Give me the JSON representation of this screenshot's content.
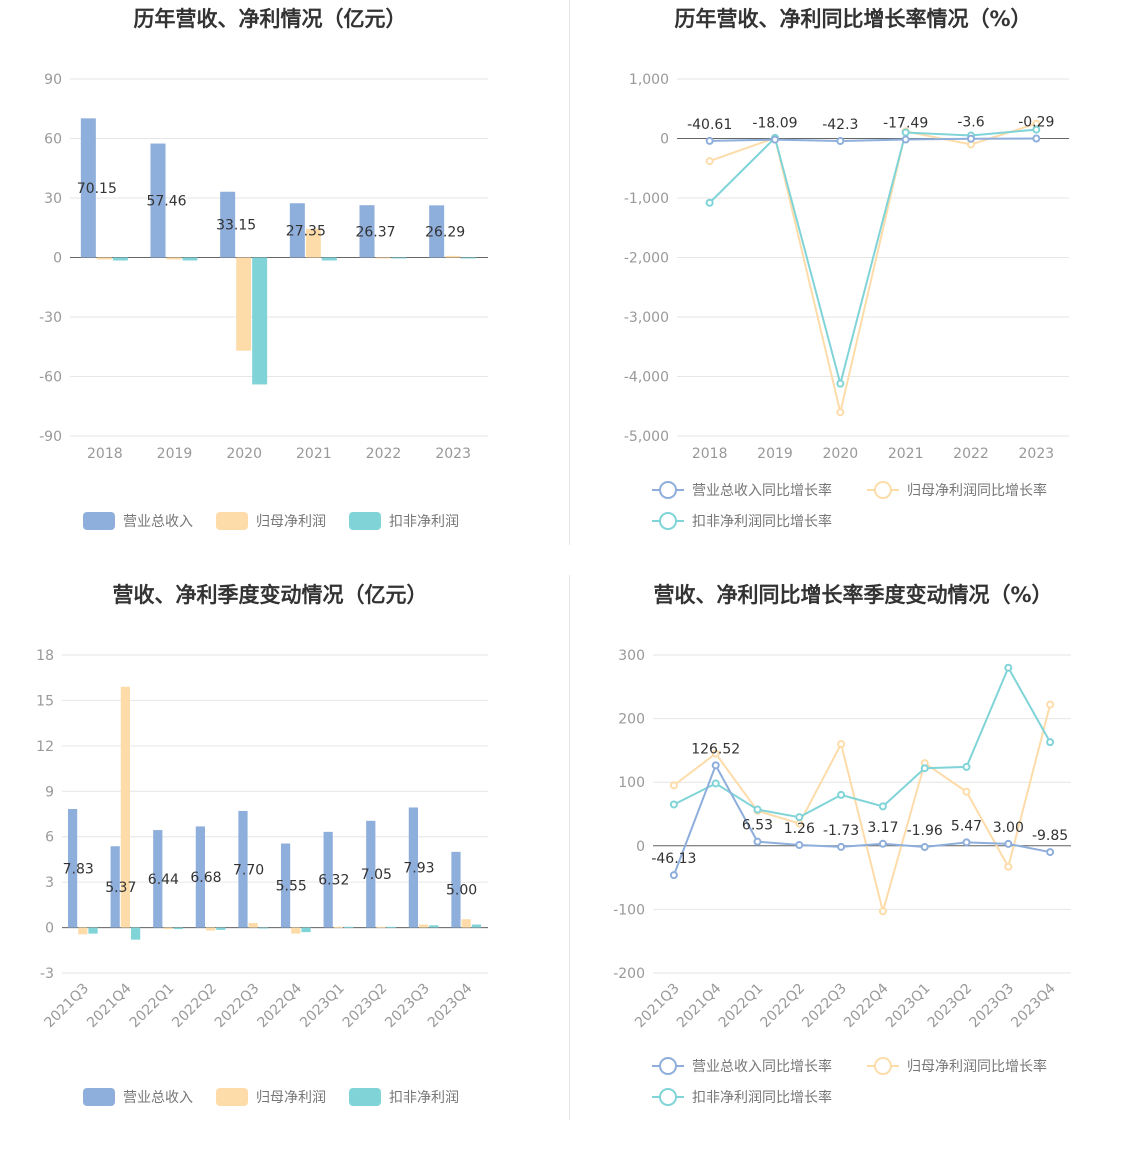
{
  "colors": {
    "revenue": "#8eaedb",
    "net_profit": "#fddcaa",
    "deducted_profit": "#80d4d7",
    "grid": "#e6e6e6",
    "axis": "#666666"
  },
  "chart_data": [
    {
      "id": "annual_values",
      "type": "bar",
      "title": "历年营收、净利情况（亿元）",
      "categories": [
        "2018",
        "2019",
        "2020",
        "2021",
        "2022",
        "2023"
      ],
      "ylim": [
        -90,
        90
      ],
      "yticks": [
        "90",
        "60",
        "30",
        "0",
        "-30",
        "-60",
        "-90"
      ],
      "series": [
        {
          "name": "营业总收入",
          "values": [
            70.15,
            57.46,
            33.15,
            27.35,
            26.37,
            26.29
          ]
        },
        {
          "name": "归母净利润",
          "values": [
            -1.0,
            -1.0,
            -47.0,
            14.5,
            -0.5,
            0.8
          ]
        },
        {
          "name": "扣非净利润",
          "values": [
            -1.5,
            -1.5,
            -64.0,
            -1.5,
            -0.5,
            -0.5
          ]
        }
      ],
      "data_labels": [
        "70.15",
        "57.46",
        "33.15",
        "27.35",
        "26.37",
        "26.29"
      ],
      "legend": "bottom",
      "grid": true
    },
    {
      "id": "annual_growth",
      "type": "line",
      "title": "历年营收、净利同比增长率情况（%）",
      "categories": [
        "2018",
        "2019",
        "2020",
        "2021",
        "2022",
        "2023"
      ],
      "ylim": [
        -5000,
        1000
      ],
      "yticks": [
        "1,000",
        "0",
        "-1,000",
        "-2,000",
        "-3,000",
        "-4,000",
        "-5,000"
      ],
      "series": [
        {
          "name": "营业总收入同比增长率",
          "values": [
            -40.61,
            -18.09,
            -42.3,
            -17.49,
            -3.6,
            -0.29
          ]
        },
        {
          "name": "归母净利润同比增长率",
          "values": [
            -380,
            10,
            -4600,
            120,
            -100,
            250
          ]
        },
        {
          "name": "扣非净利润同比增长率",
          "values": [
            -1080,
            10,
            -4120,
            100,
            50,
            150
          ]
        }
      ],
      "data_labels": [
        "-40.61",
        "-18.09",
        "-42.3",
        "-17.49",
        "-3.6",
        "-0.29"
      ],
      "legend": "bottom",
      "grid": true
    },
    {
      "id": "quarterly_values",
      "type": "bar",
      "title": "营收、净利季度变动情况（亿元）",
      "categories": [
        "2021Q3",
        "2021Q4",
        "2022Q1",
        "2022Q2",
        "2022Q3",
        "2022Q4",
        "2023Q1",
        "2023Q2",
        "2023Q3",
        "2023Q4"
      ],
      "ylim": [
        -3,
        18
      ],
      "yticks": [
        "18",
        "15",
        "12",
        "9",
        "6",
        "3",
        "0",
        "-3"
      ],
      "series": [
        {
          "name": "营业总收入",
          "values": [
            7.83,
            5.37,
            6.44,
            6.68,
            7.7,
            5.55,
            6.32,
            7.05,
            7.93,
            5.0
          ]
        },
        {
          "name": "归母净利润",
          "values": [
            -0.45,
            15.9,
            -0.1,
            -0.2,
            0.3,
            -0.4,
            0.05,
            0.05,
            0.2,
            0.55
          ]
        },
        {
          "name": "扣非净利润",
          "values": [
            -0.4,
            -0.8,
            -0.1,
            -0.15,
            -0.05,
            -0.3,
            0.05,
            0.05,
            0.15,
            0.2
          ]
        }
      ],
      "data_labels": [
        "7.83",
        "5.37",
        "6.44",
        "6.68",
        "7.70",
        "5.55",
        "6.32",
        "7.05",
        "7.93",
        "5.00"
      ],
      "legend": "bottom",
      "grid": true
    },
    {
      "id": "quarterly_growth",
      "type": "line",
      "title": "营收、净利同比增长率季度变动情况（%）",
      "categories": [
        "2021Q3",
        "2021Q4",
        "2022Q1",
        "2022Q2",
        "2022Q3",
        "2022Q4",
        "2023Q1",
        "2023Q2",
        "2023Q3",
        "2023Q4"
      ],
      "ylim": [
        -200,
        300
      ],
      "yticks": [
        "300",
        "200",
        "100",
        "0",
        "-100",
        "-200"
      ],
      "series": [
        {
          "name": "营业总收入同比增长率",
          "values": [
            -46.13,
            126.52,
            6.53,
            1.26,
            -1.73,
            3.17,
            -1.96,
            5.47,
            3.0,
            -9.85
          ]
        },
        {
          "name": "归母净利润同比增长率",
          "values": [
            95,
            145,
            55,
            35,
            160,
            -103,
            130,
            85,
            -33,
            222
          ]
        },
        {
          "name": "扣非净利润同比增长率",
          "values": [
            65,
            98,
            57,
            45,
            80,
            62,
            122,
            124,
            280,
            163
          ]
        }
      ],
      "data_labels": [
        "-46.13",
        "126.52",
        "6.53",
        "1.26",
        "-1.73",
        "3.17",
        "-1.96",
        "5.47",
        "3.00",
        "-9.85"
      ],
      "legend": "bottom",
      "grid": true
    }
  ]
}
